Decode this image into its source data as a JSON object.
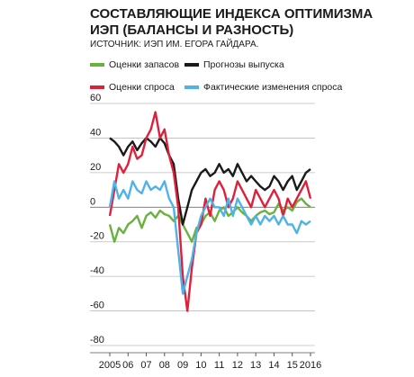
{
  "chart_data": {
    "type": "line",
    "title": "СОСТАВЛЯЮЩИЕ ИНДЕКСА ОПТИМИЗМА ИЭП (БАЛАНСЫ И РАЗНОСТЬ)",
    "subtitle": "ИСТОЧНИК: ИЭП ИМ. ЕГОРА ГАЙДАРА.",
    "x": [
      2005,
      2005.25,
      2005.5,
      2005.75,
      2006,
      2006.25,
      2006.5,
      2006.75,
      2007,
      2007.25,
      2007.5,
      2007.75,
      2008,
      2008.25,
      2008.5,
      2008.75,
      2009,
      2009.25,
      2009.5,
      2009.75,
      2010,
      2010.25,
      2010.5,
      2010.75,
      2011,
      2011.25,
      2011.5,
      2011.75,
      2012,
      2012.25,
      2012.5,
      2012.75,
      2013,
      2013.25,
      2013.5,
      2013.75,
      2014,
      2014.25,
      2014.5,
      2014.75,
      2015,
      2015.25,
      2015.5,
      2015.75,
      2016
    ],
    "series": [
      {
        "name": "Оценки запасов",
        "color": "#6ab23e",
        "values": [
          -10,
          -20,
          -12,
          -15,
          -10,
          -8,
          -5,
          -12,
          -5,
          -3,
          -6,
          -2,
          -4,
          -5,
          -8,
          -5,
          -10,
          -15,
          -20,
          -12,
          -10,
          -5,
          -3,
          -8,
          -2,
          0,
          -5,
          -3,
          0,
          -3,
          -5,
          -8,
          -5,
          -3,
          -2,
          -4,
          -3,
          2,
          -2,
          0,
          -2,
          3,
          5,
          2,
          0
        ]
      },
      {
        "name": "Прогнозы выпуска",
        "color": "#1a1a1a",
        "values": [
          40,
          38,
          35,
          30,
          35,
          38,
          33,
          37,
          40,
          38,
          35,
          40,
          37,
          30,
          25,
          5,
          -10,
          0,
          10,
          15,
          20,
          22,
          18,
          20,
          25,
          20,
          22,
          18,
          25,
          20,
          15,
          18,
          15,
          12,
          10,
          12,
          18,
          15,
          10,
          15,
          18,
          10,
          15,
          20,
          22
        ]
      },
      {
        "name": "Оценки спроса",
        "color": "#e0203a",
        "values": [
          -5,
          10,
          25,
          20,
          25,
          35,
          28,
          30,
          40,
          45,
          55,
          40,
          45,
          30,
          20,
          0,
          -40,
          -60,
          -35,
          -15,
          -10,
          5,
          -5,
          10,
          15,
          10,
          0,
          5,
          15,
          10,
          5,
          0,
          10,
          5,
          0,
          5,
          10,
          5,
          -5,
          5,
          0,
          5,
          10,
          15,
          5
        ]
      },
      {
        "name": "Фактические изменения спроса",
        "color": "#4fb3e8",
        "values": [
          0,
          15,
          5,
          10,
          5,
          15,
          10,
          8,
          15,
          10,
          12,
          10,
          15,
          5,
          0,
          -25,
          -50,
          -40,
          -30,
          -15,
          -5,
          0,
          5,
          0,
          0,
          -5,
          5,
          -5,
          5,
          0,
          -5,
          -10,
          -5,
          -10,
          -5,
          -8,
          -5,
          -10,
          -5,
          -10,
          -10,
          -15,
          -8,
          -10,
          -8
        ]
      }
    ],
    "xlim": [
      2005,
      2016
    ],
    "xticks": [
      {
        "value": 2005,
        "label": "2005"
      },
      {
        "value": 2006,
        "label": "06"
      },
      {
        "value": 2007,
        "label": "07"
      },
      {
        "value": 2008,
        "label": "08"
      },
      {
        "value": 2009,
        "label": "09"
      },
      {
        "value": 2010,
        "label": "10"
      },
      {
        "value": 2011,
        "label": "11"
      },
      {
        "value": 2012,
        "label": "12"
      },
      {
        "value": 2013,
        "label": "13"
      },
      {
        "value": 2014,
        "label": "14"
      },
      {
        "value": 2015,
        "label": "15"
      },
      {
        "value": 2016,
        "label": "2016"
      }
    ],
    "ylim": [
      -80,
      60
    ],
    "yticks": [
      60,
      40,
      20,
      0,
      -20,
      -40,
      -60,
      -80
    ],
    "grid": true
  }
}
